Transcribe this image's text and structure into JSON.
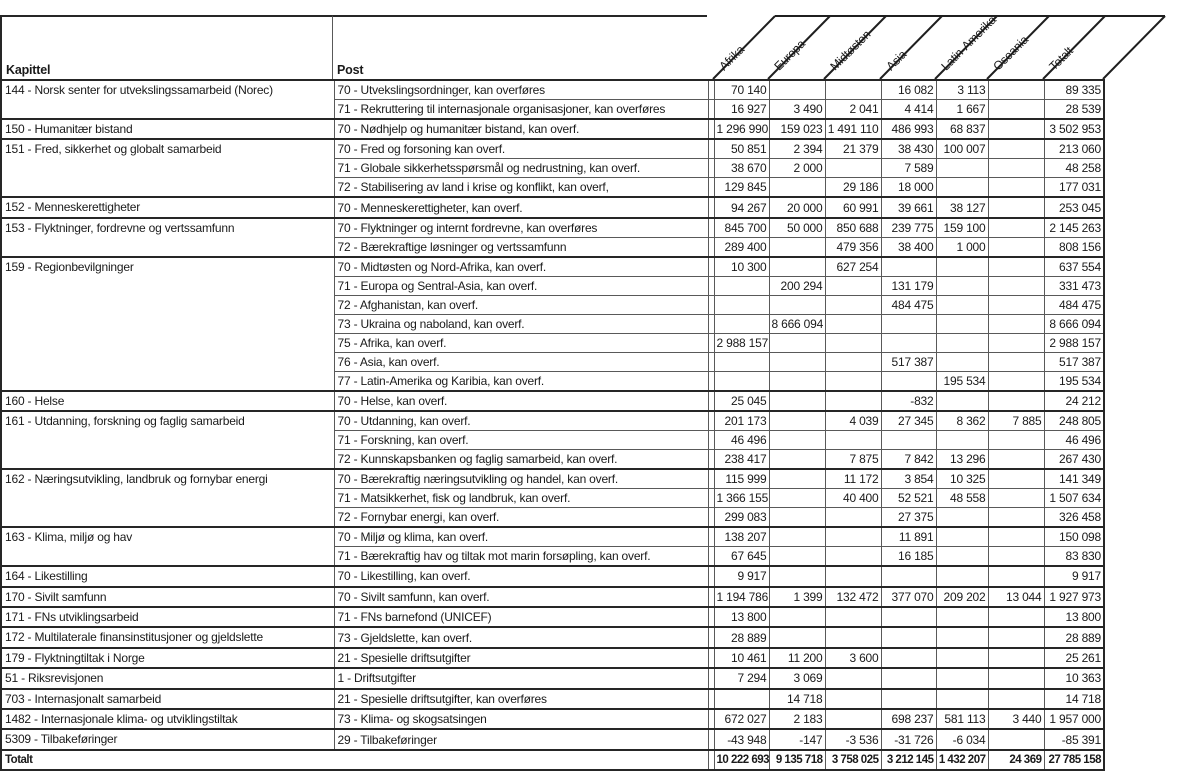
{
  "header": {
    "kapittel_label": "Kapittel",
    "post_label": "Post",
    "columns": [
      "Afrika",
      "Europa",
      "Midtøsten",
      "Asia",
      "Latin-Amerika",
      "Oseania",
      "Totalt"
    ]
  },
  "groups": [
    {
      "kapittel": "144 - Norsk senter for utvekslingssamarbeid (Norec)",
      "rows": [
        {
          "post": "70 - Utvekslingsordninger, kan overføres",
          "values": [
            "70 140",
            "",
            "",
            "16 082",
            "3 113",
            "",
            "89 335"
          ]
        },
        {
          "post": "71 - Rekruttering til internasjonale organisasjoner, kan overføres",
          "values": [
            "16 927",
            "3 490",
            "2 041",
            "4 414",
            "1 667",
            "",
            "28 539"
          ]
        }
      ]
    },
    {
      "kapittel": "150 - Humanitær bistand",
      "rows": [
        {
          "post": "70 - Nødhjelp og humanitær bistand, kan overf.",
          "values": [
            "1 296 990",
            "159 023",
            "1 491 110",
            "486 993",
            "68 837",
            "",
            "3 502 953"
          ]
        }
      ]
    },
    {
      "kapittel": "151 - Fred, sikkerhet og globalt samarbeid",
      "rows": [
        {
          "post": "70 - Fred og forsoning kan overf.",
          "values": [
            "50 851",
            "2 394",
            "21 379",
            "38 430",
            "100 007",
            "",
            "213 060"
          ]
        },
        {
          "post": "71 - Globale sikkerhetsspørsmål og nedrustning, kan overf.",
          "values": [
            "38 670",
            "2 000",
            "",
            "7 589",
            "",
            "",
            "48 258"
          ]
        },
        {
          "post": "72 - Stabilisering av land i krise og konflikt, kan overf,",
          "values": [
            "129 845",
            "",
            "29 186",
            "18 000",
            "",
            "",
            "177 031"
          ]
        }
      ]
    },
    {
      "kapittel": "152 - Menneskerettigheter",
      "rows": [
        {
          "post": "70 - Menneskerettigheter, kan overf.",
          "values": [
            "94 267",
            "20 000",
            "60 991",
            "39 661",
            "38 127",
            "",
            "253 045"
          ]
        }
      ]
    },
    {
      "kapittel": "153 - Flyktninger, fordrevne og vertssamfunn",
      "rows": [
        {
          "post": "70 - Flyktninger og internt fordrevne, kan overføres",
          "values": [
            "845 700",
            "50 000",
            "850 688",
            "239 775",
            "159 100",
            "",
            "2 145 263"
          ]
        },
        {
          "post": "72 - Bærekraftige løsninger og vertssamfunn",
          "values": [
            "289 400",
            "",
            "479 356",
            "38 400",
            "1 000",
            "",
            "808 156"
          ]
        }
      ]
    },
    {
      "kapittel": "159 - Regionbevilgninger",
      "rows": [
        {
          "post": "70 - Midtøsten og Nord-Afrika, kan overf.",
          "values": [
            "10 300",
            "",
            "627 254",
            "",
            "",
            "",
            "637 554"
          ]
        },
        {
          "post": "71 - Europa og Sentral-Asia, kan overf.",
          "values": [
            "",
            "200 294",
            "",
            "131 179",
            "",
            "",
            "331 473"
          ]
        },
        {
          "post": "72 - Afghanistan, kan overf.",
          "values": [
            "",
            "",
            "",
            "484 475",
            "",
            "",
            "484 475"
          ]
        },
        {
          "post": "73 - Ukraina og naboland, kan overf.",
          "values": [
            "",
            "8 666 094",
            "",
            "",
            "",
            "",
            "8 666 094"
          ]
        },
        {
          "post": "75 - Afrika, kan overf.",
          "values": [
            "2 988 157",
            "",
            "",
            "",
            "",
            "",
            "2 988 157"
          ]
        },
        {
          "post": "76 - Asia, kan overf.",
          "values": [
            "",
            "",
            "",
            "517 387",
            "",
            "",
            "517 387"
          ]
        },
        {
          "post": "77 - Latin-Amerika og Karibia, kan overf.",
          "values": [
            "",
            "",
            "",
            "",
            "195 534",
            "",
            "195 534"
          ]
        }
      ]
    },
    {
      "kapittel": "160 - Helse",
      "rows": [
        {
          "post": "70 - Helse, kan overf.",
          "values": [
            "25 045",
            "",
            "",
            "-832",
            "",
            "",
            "24 212"
          ]
        }
      ]
    },
    {
      "kapittel": "161 - Utdanning, forskning og faglig samarbeid",
      "rows": [
        {
          "post": "70 - Utdanning, kan overf.",
          "values": [
            "201 173",
            "",
            "4 039",
            "27 345",
            "8 362",
            "7 885",
            "248 805"
          ]
        },
        {
          "post": "71 - Forskning, kan overf.",
          "values": [
            "46 496",
            "",
            "",
            "",
            "",
            "",
            "46 496"
          ]
        },
        {
          "post": "72 - Kunnskapsbanken og faglig samarbeid, kan overf.",
          "values": [
            "238 417",
            "",
            "7 875",
            "7 842",
            "13 296",
            "",
            "267 430"
          ]
        }
      ]
    },
    {
      "kapittel": "162 - Næringsutvikling, landbruk og fornybar energi",
      "rows": [
        {
          "post": "70 - Bærekraftig næringsutvikling og handel, kan overf.",
          "values": [
            "115 999",
            "",
            "11 172",
            "3 854",
            "10 325",
            "",
            "141 349"
          ]
        },
        {
          "post": "71 - Matsikkerhet, fisk og landbruk, kan overf.",
          "values": [
            "1 366 155",
            "",
            "40 400",
            "52 521",
            "48 558",
            "",
            "1 507 634"
          ]
        },
        {
          "post": "72 - Fornybar energi, kan overf.",
          "values": [
            "299 083",
            "",
            "",
            "27 375",
            "",
            "",
            "326 458"
          ]
        }
      ]
    },
    {
      "kapittel": "163 - Klima, miljø og hav",
      "rows": [
        {
          "post": "70 - Miljø og klima, kan overf.",
          "values": [
            "138 207",
            "",
            "",
            "11 891",
            "",
            "",
            "150 098"
          ]
        },
        {
          "post": "71 - Bærekraftig hav og tiltak mot marin forsøpling, kan overf.",
          "values": [
            "67 645",
            "",
            "",
            "16 185",
            "",
            "",
            "83 830"
          ]
        }
      ]
    },
    {
      "kapittel": "164 - Likestilling",
      "rows": [
        {
          "post": "70 - Likestilling, kan overf.",
          "values": [
            "9 917",
            "",
            "",
            "",
            "",
            "",
            "9 917"
          ]
        }
      ]
    },
    {
      "kapittel": "170 - Sivilt samfunn",
      "rows": [
        {
          "post": "70 - Sivilt samfunn, kan overf.",
          "values": [
            "1 194 786",
            "1 399",
            "132 472",
            "377 070",
            "209 202",
            "13 044",
            "1 927 973"
          ]
        }
      ]
    },
    {
      "kapittel": "171 - FNs utviklingsarbeid",
      "rows": [
        {
          "post": "71 - FNs barnefond (UNICEF)",
          "values": [
            "13 800",
            "",
            "",
            "",
            "",
            "",
            "13 800"
          ]
        }
      ]
    },
    {
      "kapittel": "172 - Multilaterale finansinstitusjoner og gjeldslette",
      "rows": [
        {
          "post": "73 - Gjeldslette, kan overf.",
          "values": [
            "28 889",
            "",
            "",
            "",
            "",
            "",
            "28 889"
          ]
        }
      ]
    },
    {
      "kapittel": "179 - Flyktningtiltak i Norge",
      "rows": [
        {
          "post": "21 - Spesielle driftsutgifter",
          "values": [
            "10 461",
            "11 200",
            "3 600",
            "",
            "",
            "",
            "25 261"
          ]
        }
      ]
    },
    {
      "kapittel": "51 - Riksrevisjonen",
      "rows": [
        {
          "post": "1 - Driftsutgifter",
          "values": [
            "7 294",
            "3 069",
            "",
            "",
            "",
            "",
            "10 363"
          ]
        }
      ]
    },
    {
      "kapittel": "703 - Internasjonalt samarbeid",
      "rows": [
        {
          "post": "21 - Spesielle driftsutgifter, kan overføres",
          "values": [
            "",
            "14 718",
            "",
            "",
            "",
            "",
            "14 718"
          ]
        }
      ]
    },
    {
      "kapittel": "1482 - Internasjonale klima- og utviklingstiltak",
      "rows": [
        {
          "post": "73 - Klima- og skogsatsingen",
          "values": [
            "672 027",
            "2 183",
            "",
            "698 237",
            "581 113",
            "3 440",
            "1 957 000"
          ]
        }
      ]
    },
    {
      "kapittel": "5309 - Tilbakeføringer",
      "rows": [
        {
          "post": "29 - Tilbakeføringer",
          "values": [
            "-43 948",
            "-147",
            "-3 536",
            "-31 726",
            "-6 034",
            "",
            "-85 391"
          ]
        }
      ]
    }
  ],
  "totals": {
    "label": "Totalt",
    "values": [
      "10 222 693",
      "9 135 718",
      "3 758 025",
      "3 212 145",
      "1 432 207",
      "24 369",
      "27 785 158"
    ]
  }
}
